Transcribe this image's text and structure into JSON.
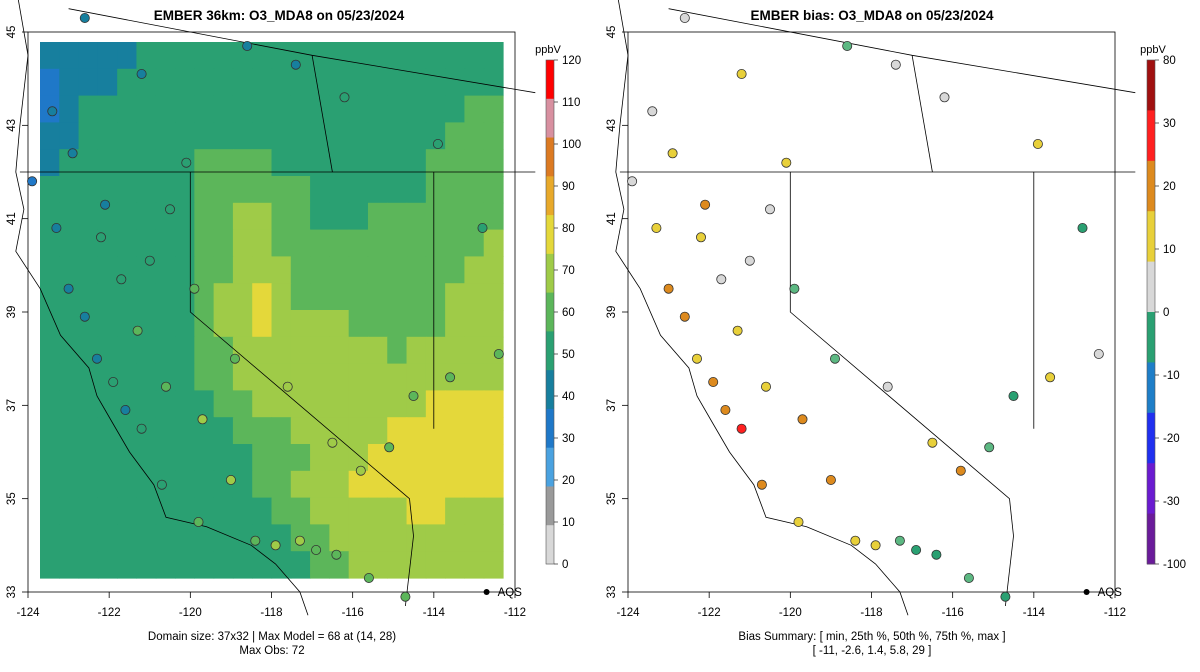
{
  "left_panel": {
    "title": "EMBER 36km: O3_MDA8 on 05/23/2024",
    "caption_line1": "Domain size: 37x32 | Max Model = 68 at (14, 28)",
    "caption_line2": "Max Obs: 72",
    "colorbar_unit": "ppbV",
    "colorbar_ticks": [
      "0",
      "10",
      "20",
      "30",
      "40",
      "50",
      "60",
      "70",
      "80",
      "90",
      "100",
      "110",
      "120"
    ],
    "station_label": "AQS"
  },
  "right_panel": {
    "title": "EMBER bias: O3_MDA8 on 05/23/2024",
    "caption_line1": "Bias Summary: [ min, 25th %, 50th %, 75th %, max ]",
    "caption_line2": "[ -11,   -2.6,   1.4,   5.8,   29 ]",
    "colorbar_unit": "ppbV",
    "colorbar_ticks": [
      "-100",
      "-30",
      "-20",
      "-10",
      "0",
      "10",
      "20",
      "30",
      "80"
    ],
    "station_label": "AQS"
  },
  "axes": {
    "x_ticks": [
      "-124",
      "-122",
      "-120",
      "-118",
      "-116",
      "-114",
      "-112"
    ],
    "y_ticks": [
      "33",
      "35",
      "37",
      "39",
      "41",
      "43",
      "45"
    ]
  },
  "colors": {
    "ozone_scale": [
      "#d8d8d8",
      "#9a9a9a",
      "#4aa2e0",
      "#1f78c8",
      "#177f9e",
      "#2aa072",
      "#5cb65a",
      "#9fcb48",
      "#e4d83a",
      "#e8a92a",
      "#dc7a22",
      "#d890a0",
      "#ff0000"
    ],
    "bias_scale": [
      "#6a1b9a",
      "#6a1bd0",
      "#2030f0",
      "#1e7ec8",
      "#2aa072",
      "#d8d8d8",
      "#e8d03a",
      "#dd8a1e",
      "#ff2020",
      "#a01010"
    ]
  },
  "chart_data": {
    "type": "map",
    "extent": {
      "lon": [
        -124,
        -112
      ],
      "lat": [
        33,
        45
      ]
    },
    "model_grid_ppbV": [
      "333334444444444444444444",
      "233344444444444444444444",
      "234444444444444444444455",
      "334444444444444444444555",
      "344444445555444444445555",
      "444444445555554444445555",
      "444444445566554445555555",
      "444444445566555555555556",
      "444444445566655555555566",
      "444444445667655555555666",
      "444444445667666655555666",
      "444444445566666666566666",
      "444444445566666666666666",
      "444444444556666666667777",
      "444444444455566666777777",
      "444444444445556667777777",
      "444444444445566677777777",
      "444444444444556666677666",
      "444444444444455666666666",
      "444444444444445566666666"
    ],
    "obs_stations": [
      [
        -123.9,
        41.8,
        34
      ],
      [
        -123.3,
        40.8,
        38
      ],
      [
        -123.0,
        39.5,
        36
      ],
      [
        -122.6,
        38.9,
        40
      ],
      [
        -122.3,
        38.0,
        42
      ],
      [
        -121.9,
        37.5,
        45
      ],
      [
        -121.6,
        36.9,
        40
      ],
      [
        -121.2,
        36.5,
        48
      ],
      [
        -120.7,
        35.3,
        52
      ],
      [
        -119.8,
        34.5,
        55
      ],
      [
        -118.4,
        34.1,
        62
      ],
      [
        -117.9,
        34.0,
        66
      ],
      [
        -117.3,
        34.1,
        70
      ],
      [
        -116.9,
        33.9,
        64
      ],
      [
        -116.4,
        33.8,
        58
      ],
      [
        -115.6,
        33.3,
        60
      ],
      [
        -114.7,
        32.9,
        55
      ],
      [
        -119.0,
        35.4,
        68
      ],
      [
        -119.7,
        36.7,
        66
      ],
      [
        -120.6,
        37.4,
        62
      ],
      [
        -121.3,
        38.6,
        58
      ],
      [
        -121.7,
        39.7,
        54
      ],
      [
        -122.2,
        40.6,
        50
      ],
      [
        -121.0,
        40.1,
        52
      ],
      [
        -120.5,
        41.2,
        54
      ],
      [
        -119.9,
        39.5,
        58
      ],
      [
        -118.9,
        38.0,
        64
      ],
      [
        -117.6,
        37.4,
        68
      ],
      [
        -116.5,
        36.2,
        66
      ],
      [
        -115.8,
        35.6,
        72
      ],
      [
        -115.1,
        36.1,
        62
      ],
      [
        -114.5,
        37.2,
        60
      ],
      [
        -113.6,
        37.6,
        58
      ],
      [
        -112.4,
        38.1,
        56
      ],
      [
        -112.8,
        40.8,
        52
      ],
      [
        -113.9,
        42.6,
        48
      ],
      [
        -116.2,
        43.6,
        46
      ],
      [
        -117.4,
        44.3,
        44
      ],
      [
        -118.6,
        44.7,
        44
      ],
      [
        -121.2,
        44.1,
        42
      ],
      [
        -122.6,
        45.3,
        40
      ],
      [
        -120.1,
        42.2,
        46
      ],
      [
        -122.9,
        42.4,
        42
      ],
      [
        -123.4,
        43.3,
        40
      ],
      [
        -122.1,
        41.3,
        44
      ]
    ],
    "bias_stations": [
      [
        -123.9,
        41.8,
        -2
      ],
      [
        -123.3,
        40.8,
        4
      ],
      [
        -123.0,
        39.5,
        8
      ],
      [
        -122.6,
        38.9,
        12
      ],
      [
        -122.3,
        38.0,
        6
      ],
      [
        -121.9,
        37.5,
        9
      ],
      [
        -121.6,
        36.9,
        14
      ],
      [
        -121.2,
        36.5,
        29
      ],
      [
        -120.7,
        35.3,
        11
      ],
      [
        -119.8,
        34.5,
        7
      ],
      [
        -118.4,
        34.1,
        5
      ],
      [
        -117.9,
        34.0,
        3
      ],
      [
        -117.3,
        34.1,
        -4
      ],
      [
        -116.9,
        33.9,
        -6
      ],
      [
        -116.4,
        33.8,
        -8
      ],
      [
        -115.6,
        33.3,
        -3
      ],
      [
        -114.7,
        32.9,
        -11
      ],
      [
        -119.0,
        35.4,
        8
      ],
      [
        -119.7,
        36.7,
        10
      ],
      [
        -120.6,
        37.4,
        6
      ],
      [
        -121.3,
        38.6,
        2
      ],
      [
        -121.7,
        39.7,
        -1
      ],
      [
        -122.2,
        40.6,
        4
      ],
      [
        -121.0,
        40.1,
        1
      ],
      [
        -120.5,
        41.2,
        0
      ],
      [
        -119.9,
        39.5,
        -3
      ],
      [
        -118.9,
        38.0,
        -5
      ],
      [
        -117.6,
        37.4,
        -2
      ],
      [
        -116.5,
        36.2,
        5
      ],
      [
        -115.8,
        35.6,
        12
      ],
      [
        -115.1,
        36.1,
        -4
      ],
      [
        -114.5,
        37.2,
        -7
      ],
      [
        -113.6,
        37.6,
        3
      ],
      [
        -112.4,
        38.1,
        -2
      ],
      [
        -112.8,
        40.8,
        -6
      ],
      [
        -113.9,
        42.6,
        4
      ],
      [
        -116.2,
        43.6,
        -1
      ],
      [
        -117.4,
        44.3,
        1
      ],
      [
        -118.6,
        44.7,
        -3
      ],
      [
        -121.2,
        44.1,
        2
      ],
      [
        -122.6,
        45.3,
        0
      ],
      [
        -120.1,
        42.2,
        7
      ],
      [
        -122.9,
        42.4,
        3
      ],
      [
        -123.4,
        43.3,
        -2
      ],
      [
        -122.1,
        41.3,
        9
      ]
    ],
    "aqs_marker": [
      -112.7,
      33.0
    ]
  }
}
